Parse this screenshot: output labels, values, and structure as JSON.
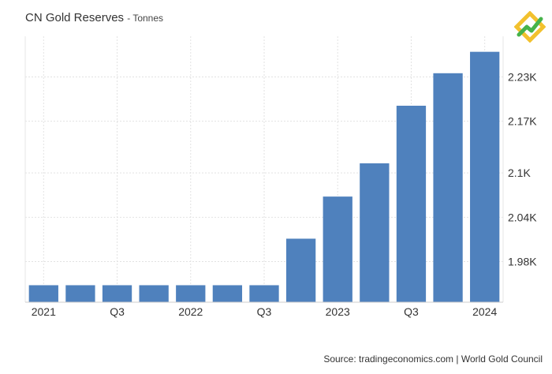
{
  "title": "CN Gold Reserves",
  "unit": "- Tonnes",
  "source": "Source: tradingeconomics.com | World Gold Council",
  "logo_icon": "green-yellow-diamond-logo-icon",
  "chart_data": {
    "type": "bar",
    "title": "CN Gold Reserves",
    "ylabel": "Tonnes",
    "categories": [
      "2021 Q1",
      "2021 Q2",
      "2021 Q3",
      "2021 Q4",
      "2022 Q1",
      "2022 Q2",
      "2022 Q3",
      "2022 Q4",
      "2023 Q1",
      "2023 Q2",
      "2023 Q3",
      "2023 Q4",
      "2024 Q1"
    ],
    "values": [
      1948,
      1948,
      1948,
      1948,
      1948,
      1948,
      1948,
      2011,
      2068,
      2113,
      2191,
      2235,
      2264
    ],
    "x_tick_labels": [
      {
        "label": "2021",
        "category_index": 0
      },
      {
        "label": "Q3",
        "category_index": 2
      },
      {
        "label": "2022",
        "category_index": 4
      },
      {
        "label": "Q3",
        "category_index": 6
      },
      {
        "label": "2023",
        "category_index": 8
      },
      {
        "label": "Q3",
        "category_index": 10
      },
      {
        "label": "2024",
        "category_index": 12
      }
    ],
    "y_ticks": [
      1980,
      2040,
      2100,
      2170,
      2230
    ],
    "y_tick_labels": [
      "1.98K",
      "2.04K",
      "2.1K",
      "2.17K",
      "2.23K"
    ],
    "ylim": [
      1925,
      2285
    ],
    "bar_color": "#4f81bd",
    "grid": true,
    "y_axis_position": "right"
  }
}
